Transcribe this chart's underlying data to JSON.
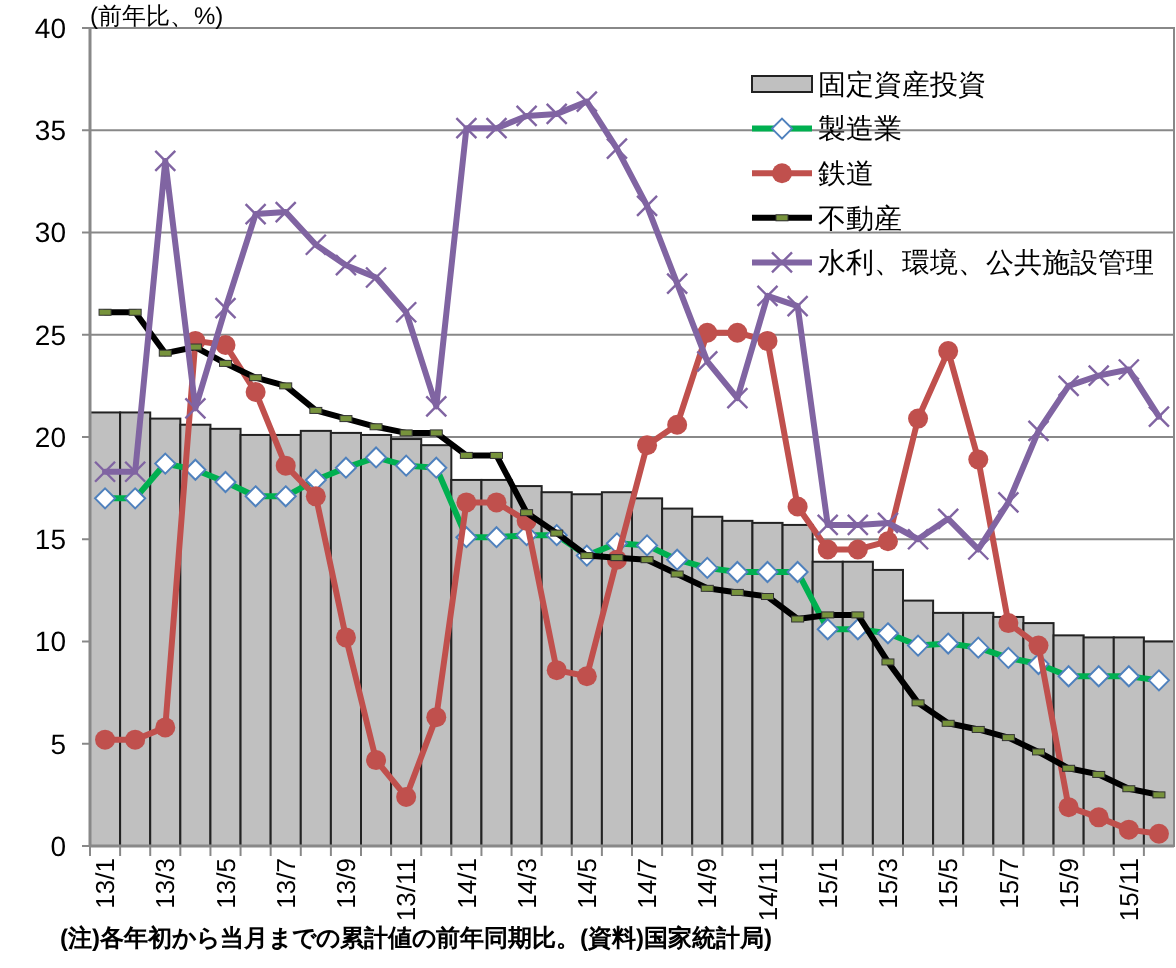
{
  "chart_data": {
    "type": "bar",
    "ylabel": "(前年比、%)",
    "categories": [
      "13/1",
      null,
      "13/3",
      null,
      "13/5",
      null,
      "13/7",
      null,
      "13/9",
      null,
      "13/11",
      null,
      "14/1",
      null,
      "14/3",
      null,
      "14/5",
      null,
      "14/7",
      null,
      "14/9",
      null,
      "14/11",
      null,
      "15/1",
      null,
      "15/3",
      null,
      "15/5",
      null,
      "15/7",
      null,
      "15/9",
      null,
      "15/11",
      null
    ],
    "series": [
      {
        "name": "固定資産投資",
        "color": "#c0c0c0",
        "values": [
          21.2,
          21.2,
          20.9,
          20.6,
          20.4,
          20.1,
          20.1,
          20.3,
          20.2,
          20.1,
          19.9,
          19.6,
          17.9,
          17.9,
          17.6,
          17.3,
          17.2,
          17.3,
          17.0,
          16.5,
          16.1,
          15.9,
          15.8,
          15.7,
          13.9,
          13.9,
          13.5,
          12.0,
          11.4,
          11.4,
          11.2,
          10.9,
          10.3,
          10.2,
          10.2,
          10.0
        ]
      },
      {
        "name": "製造業",
        "type": "line",
        "color": "#00b050",
        "marker": "diamond",
        "values": [
          17.0,
          17.0,
          18.7,
          18.4,
          17.8,
          17.1,
          17.1,
          17.9,
          18.5,
          19.0,
          18.6,
          18.5,
          15.1,
          15.1,
          15.2,
          15.2,
          14.2,
          14.8,
          14.7,
          14.0,
          13.6,
          13.4,
          13.4,
          13.4,
          10.6,
          10.6,
          10.4,
          9.8,
          9.9,
          9.7,
          9.2,
          8.9,
          8.3,
          8.3,
          8.3,
          8.1
        ]
      },
      {
        "name": "鉄道",
        "type": "line",
        "color": "#c0504d",
        "marker": "circle",
        "values": [
          5.2,
          5.2,
          5.8,
          24.7,
          24.5,
          22.2,
          18.6,
          17.1,
          10.2,
          4.2,
          2.4,
          6.3,
          16.8,
          16.8,
          15.9,
          8.6,
          8.3,
          14.0,
          19.6,
          20.6,
          25.1,
          25.1,
          24.7,
          16.6,
          14.5,
          14.5,
          14.9,
          20.9,
          24.2,
          18.9,
          10.9,
          9.8,
          1.9,
          1.4,
          0.8,
          0.6
        ]
      },
      {
        "name": "不動産",
        "type": "line",
        "color": "#000000",
        "marker": "square",
        "values": [
          26.1,
          26.1,
          24.1,
          24.4,
          23.6,
          22.9,
          22.5,
          21.3,
          20.9,
          20.5,
          20.2,
          20.2,
          19.1,
          19.1,
          16.3,
          15.3,
          14.2,
          14.1,
          14.0,
          13.3,
          12.6,
          12.4,
          12.2,
          11.1,
          11.3,
          11.3,
          9.0,
          7.0,
          6.0,
          5.7,
          5.3,
          4.6,
          3.8,
          3.5,
          2.8,
          2.5
        ]
      },
      {
        "name": "水利、環境、公共施設管理",
        "type": "line",
        "color": "#8064a2",
        "marker": "cross",
        "values": [
          18.3,
          18.3,
          33.5,
          21.4,
          26.3,
          30.9,
          31.0,
          29.4,
          28.4,
          27.8,
          26.1,
          21.5,
          35.1,
          35.1,
          35.7,
          35.8,
          36.4,
          34.1,
          31.3,
          27.5,
          23.7,
          21.9,
          26.9,
          26.4,
          15.7,
          15.7,
          15.8,
          15.0,
          16.0,
          14.5,
          16.8,
          20.3,
          22.5,
          23.0,
          23.3,
          21.0
        ]
      }
    ],
    "ylim": [
      0,
      40
    ],
    "yticks": [
      0,
      5,
      10,
      15,
      20,
      25,
      30,
      35,
      40
    ],
    "grid": "y",
    "legend": "top right",
    "annotations": [
      "(注)各年初から当月までの累計値の前年同期比。(資料)国家統計局)"
    ]
  }
}
